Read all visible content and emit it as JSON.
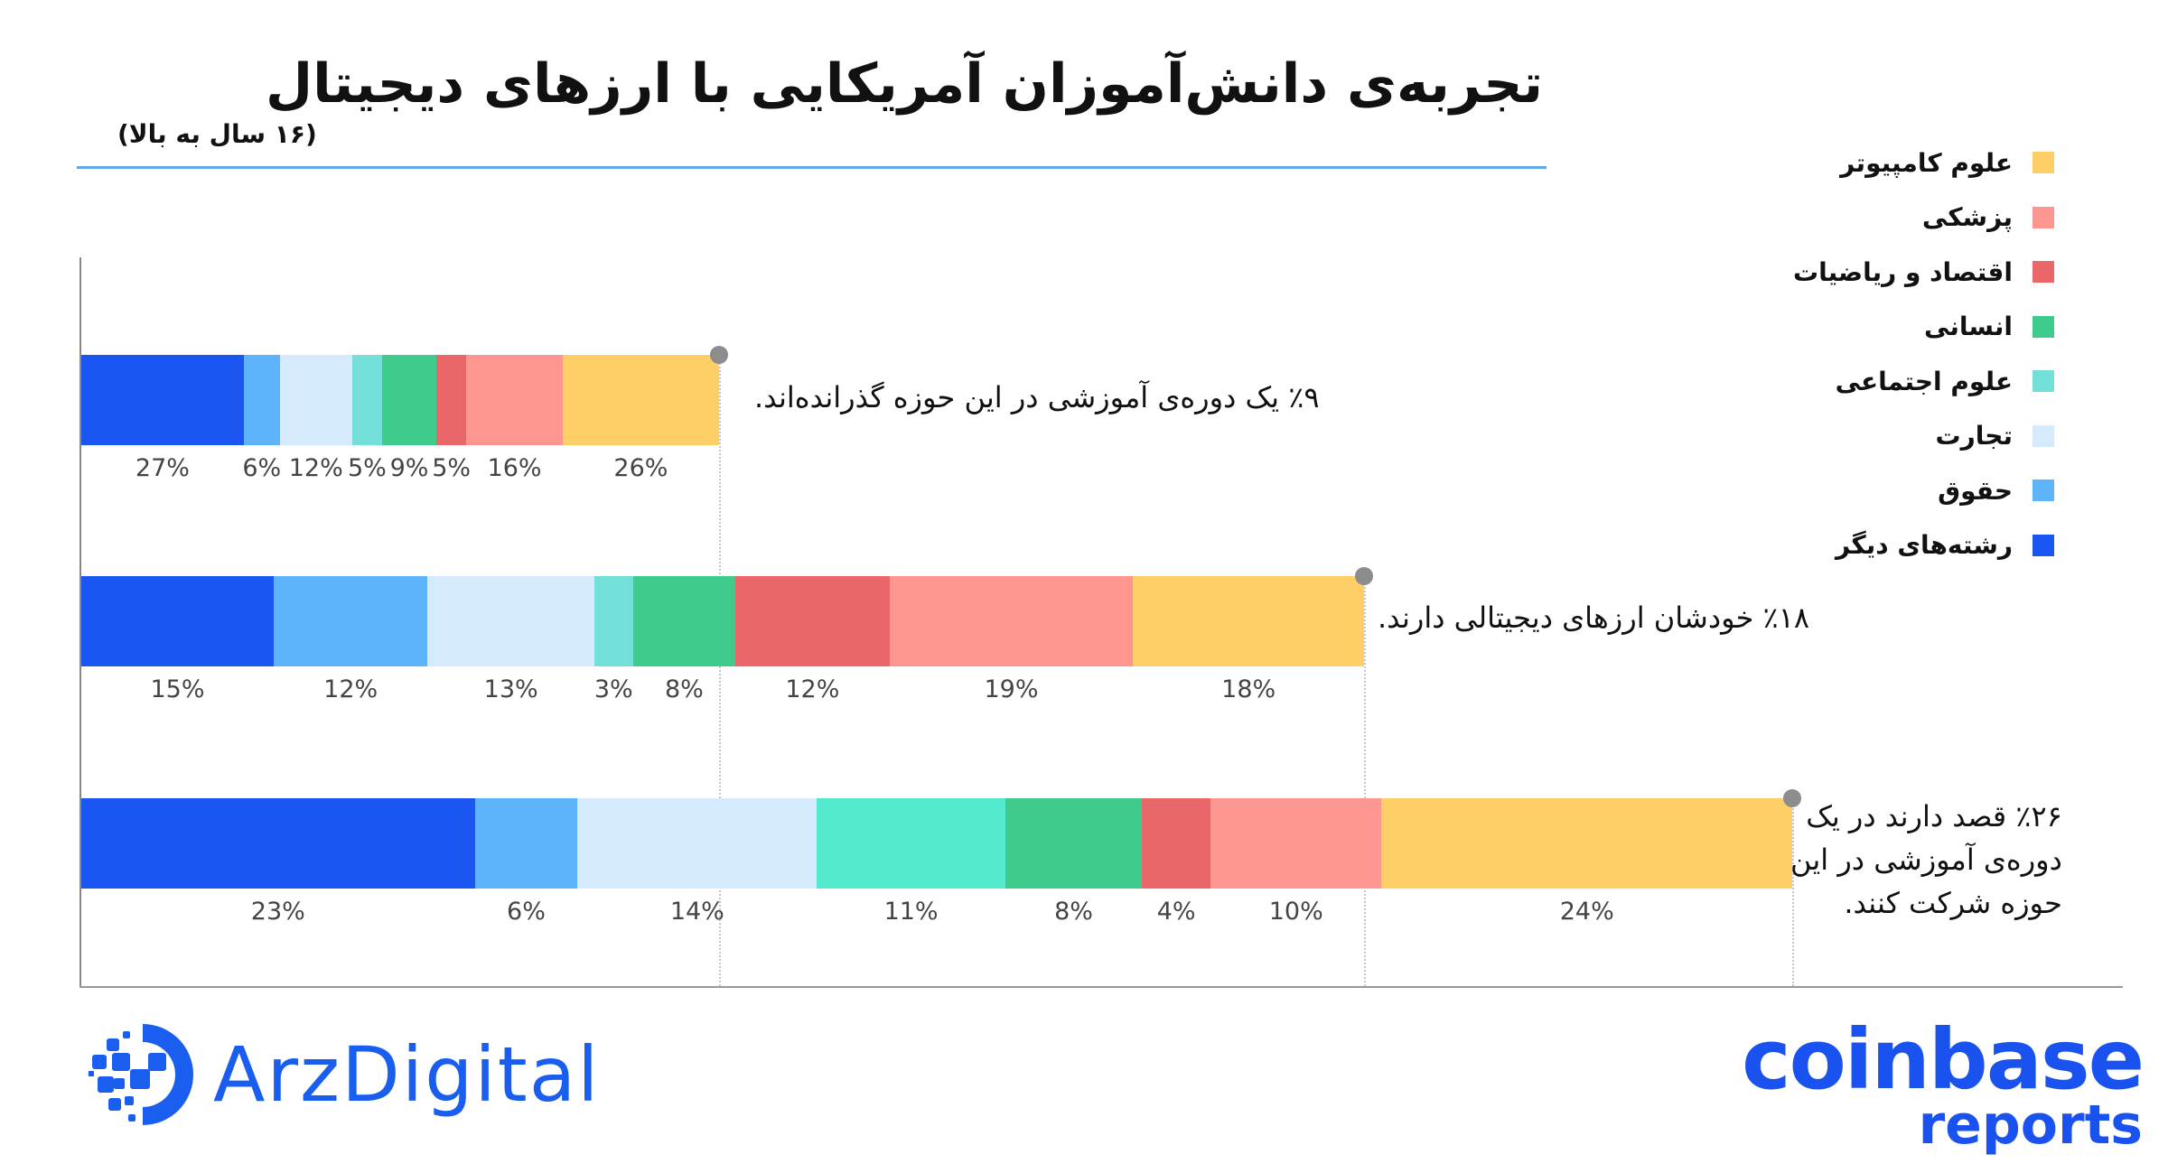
{
  "header": {
    "title": "تجربه‌ی دانش‌آموزان آمریکایی با ارزهای دیجیتال",
    "subtitle": "(۱۶ سال به بالا)"
  },
  "colors": {
    "other": "#1b55f2",
    "law": "#5eb4fb",
    "business": "#d5eafd",
    "social": "#73dfd8",
    "humanities": "#3ecb8b",
    "econ_math": "#ea6769",
    "medicine": "#fd9591",
    "computer": "#ffcf67",
    "social_bar3": "#52e9cc",
    "rule": "#5ea8f0",
    "brand": "#1a5ef0"
  },
  "legend": [
    {
      "label": "علوم کامپیوتر",
      "key": "computer",
      "color": "#ffcf67"
    },
    {
      "label": "پزشکی",
      "key": "medicine",
      "color": "#fd9591"
    },
    {
      "label": "اقتصاد و ریاضیات",
      "key": "econ_math",
      "color": "#ea6769"
    },
    {
      "label": "انسانی",
      "key": "humanities",
      "color": "#3ecb8b"
    },
    {
      "label": "علوم اجتماعی",
      "key": "social",
      "color": "#73dfd8"
    },
    {
      "label": "تجارت",
      "key": "business",
      "color": "#d5eafd"
    },
    {
      "label": "حقوق",
      "key": "law",
      "color": "#5eb4fb"
    },
    {
      "label": "رشته‌های دیگر",
      "key": "other",
      "color": "#1b55f2"
    }
  ],
  "chart_data": {
    "type": "bar",
    "stacked": true,
    "orientation": "horizontal",
    "title": "تجربه‌ی دانش‌آموزان آمریکایی با ارزهای دیجیتال",
    "subtitle": "(۱۶ سال به بالا)",
    "categories_order": [
      "رشته‌های دیگر",
      "حقوق",
      "تجارت",
      "علوم اجتماعی",
      "انسانی",
      "اقتصاد و ریاضیات",
      "پزشکی",
      "علوم کامپیوتر"
    ],
    "bars": [
      {
        "name": "٪۹ یک دوره‌ی آموزشی در این حوزه گذرانده‌اند.",
        "total_percent": 9,
        "values": [
          27,
          6,
          12,
          5,
          9,
          5,
          16,
          26
        ],
        "labels": [
          "27%",
          "6%",
          "12%",
          "5%",
          "9%",
          "5%",
          "16%",
          "26%"
        ]
      },
      {
        "name": "٪۱۸ خودشان ارزهای دیجیتالی دارند.",
        "total_percent": 18,
        "values": [
          15,
          12,
          13,
          3,
          8,
          12,
          19,
          18
        ],
        "labels": [
          "15%",
          "12%",
          "13%",
          "3%",
          "8%",
          "12%",
          "19%",
          "18%"
        ]
      },
      {
        "name": "٪۲۶ قصد دارند در یک دوره‌ی آموزشی در این حوزه شرکت کنند.",
        "total_percent": 26,
        "values": [
          23,
          6,
          14,
          11,
          8,
          4,
          10,
          24
        ],
        "labels": [
          "23%",
          "6%",
          "14%",
          "11%",
          "8%",
          "4%",
          "10%",
          "24%"
        ]
      }
    ],
    "legend_position": "right",
    "grid": false
  },
  "annotations": [
    {
      "lines": [
        "٪۹ یک دوره‌ی آموزشی در این حوزه گذرانده‌اند."
      ]
    },
    {
      "lines": [
        "٪۱۸ خودشان  ارزهای دیجیتالی دارند."
      ]
    },
    {
      "lines": [
        "٪۲۶ قصد دارند در یک",
        "دوره‌ی آموزشی در این",
        "حوزه شرکت کنند."
      ]
    }
  ],
  "footer": {
    "left_logo": "ArzDigital",
    "right_logo_main": "coinbase",
    "right_logo_sub": "reports"
  }
}
